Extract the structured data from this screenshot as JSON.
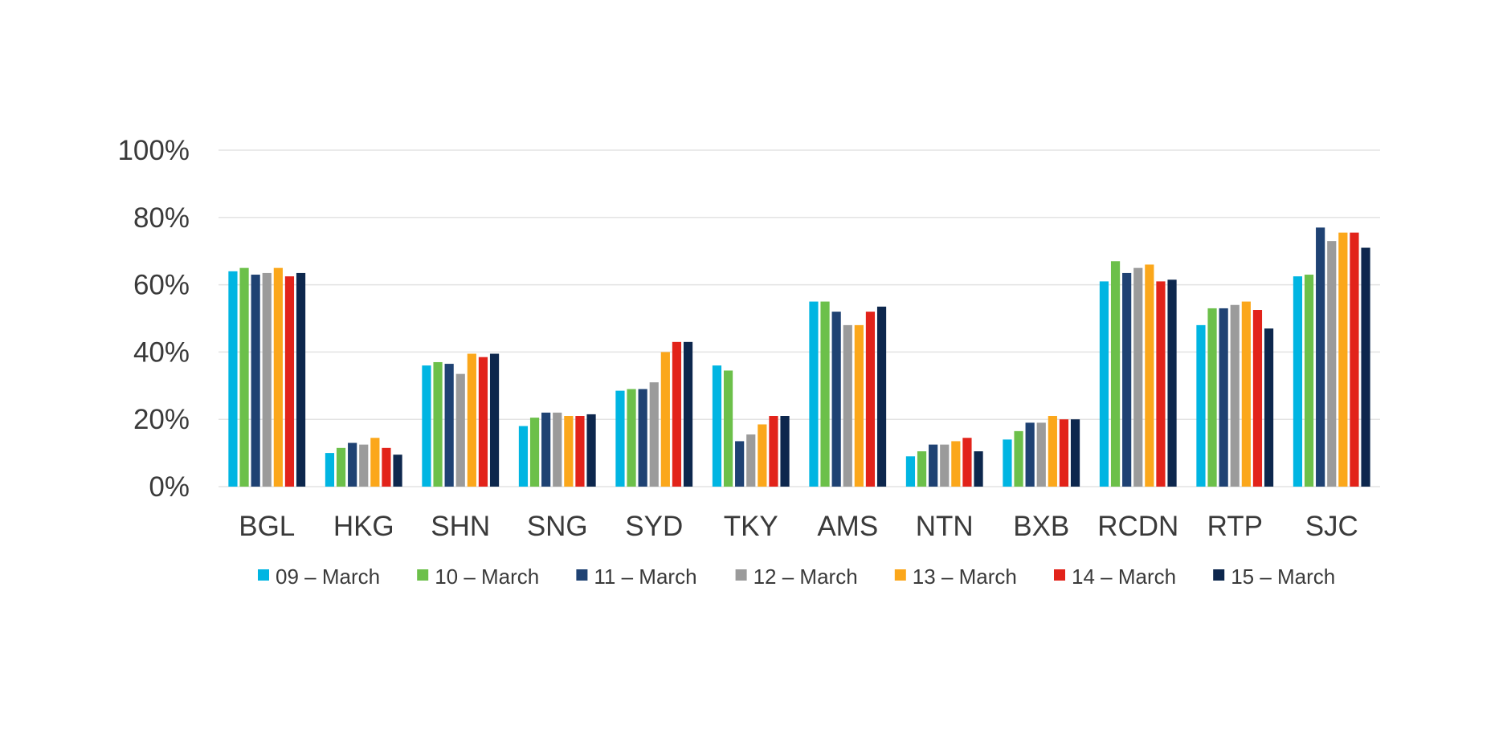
{
  "chart_data": {
    "type": "bar",
    "title": "",
    "xlabel": "",
    "ylabel": "",
    "ylim": [
      0,
      100
    ],
    "ytick_labels": [
      "0%",
      "20%",
      "40%",
      "60%",
      "80%",
      "100%"
    ],
    "ytick_values": [
      0,
      20,
      40,
      60,
      80,
      100
    ],
    "grid": true,
    "legend_position": "bottom",
    "categories": [
      "BGL",
      "HKG",
      "SHN",
      "SNG",
      "SYD",
      "TKY",
      "AMS",
      "NTN",
      "BXB",
      "RCDN",
      "RTP",
      "SJC"
    ],
    "series": [
      {
        "name": "09 – March",
        "color": "#00b5e2",
        "values": [
          64,
          10,
          36,
          18,
          28.5,
          36,
          55,
          9,
          14,
          61,
          48,
          62.5
        ]
      },
      {
        "name": "10 – March",
        "color": "#6cc04a",
        "values": [
          65,
          11.5,
          37,
          20.5,
          29,
          34.5,
          55,
          10.5,
          16.5,
          67,
          53,
          63
        ]
      },
      {
        "name": "11 – March",
        "color": "#1f4273",
        "values": [
          63,
          13,
          36.5,
          22,
          29,
          13.5,
          52,
          12.5,
          19,
          63.5,
          53,
          77
        ]
      },
      {
        "name": "12 – March",
        "color": "#9b9b9b",
        "values": [
          63.5,
          12.5,
          33.5,
          22,
          31,
          15.5,
          48,
          12.5,
          19,
          65,
          54,
          73
        ]
      },
      {
        "name": "13 – March",
        "color": "#fba71b",
        "values": [
          65,
          14.5,
          39.5,
          21,
          40,
          18.5,
          48,
          13.5,
          21,
          66,
          55,
          75.5
        ]
      },
      {
        "name": "14 – March",
        "color": "#e2231a",
        "values": [
          62.5,
          11.5,
          38.5,
          21,
          43,
          21,
          52,
          14.5,
          20,
          61,
          52.5,
          75.5
        ]
      },
      {
        "name": "15 – March",
        "color": "#0d274d",
        "values": [
          63.5,
          9.5,
          39.5,
          21.5,
          43,
          21,
          53.5,
          10.5,
          20,
          61.5,
          47,
          71
        ]
      }
    ]
  }
}
